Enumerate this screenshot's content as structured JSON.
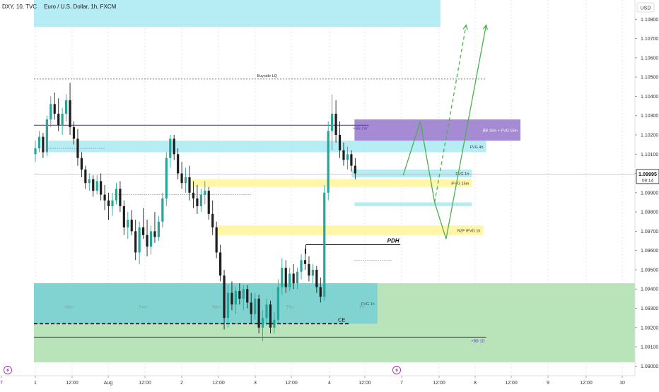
{
  "header": {
    "symbol": "DXY, 10, TVC",
    "instrument": "Euro / U.S. Dollar, 1h, FXCM",
    "currency": "USD"
  },
  "price_tag": {
    "price": "1.09995",
    "countdown": "08:14"
  },
  "colors": {
    "up": "#26a69a",
    "down": "#1e1e1e",
    "fvg": "#b2ebf2",
    "ifvg": "#fff59d",
    "bb": "#9575cd",
    "zone": "#b5e3b5",
    "purple_line": "#673ab7",
    "green_arrow": "#4caf50"
  },
  "chart_data": {
    "type": "candlestick",
    "title": "Euro / U.S. Dollar, 1h, FXCM",
    "ylim": [
      1.0895,
      1.109
    ],
    "y_ticks": [
      "1.10800",
      "1.10700",
      "1.10600",
      "1.10500",
      "1.10400",
      "1.10300",
      "1.10200",
      "1.10100",
      "1.10000",
      "1.09900",
      "1.09800",
      "1.09700",
      "1.09600",
      "1.09500",
      "1.09400",
      "1.09300",
      "1.09200",
      "1.09100",
      "1.09000"
    ],
    "x_ticks": [
      "7",
      "1",
      "12:00",
      "Aug",
      "12:00",
      "2",
      "12:00",
      "3",
      "12:00",
      "4",
      "12:00",
      "7",
      "12:00",
      "8",
      "12:00",
      "9",
      "12:00",
      "10"
    ],
    "day_labels": [
      "Mon",
      "Tues",
      "Wed",
      "Thu",
      "Fri"
    ],
    "zones": [
      {
        "label": "",
        "kind": "fvg",
        "x": [
          0,
          142
        ],
        "y": [
          1.1076,
          1.109
        ]
      },
      {
        "label": "FVG 4h",
        "kind": "fvg",
        "x": [
          5,
          158
        ],
        "y": [
          1.1011,
          1.1017
        ]
      },
      {
        "label": "-BB 15m + FVG 15m",
        "kind": "bb",
        "x": [
          112,
          170
        ],
        "y": [
          1.1017,
          1.1028
        ]
      },
      {
        "label": "FVG 1h",
        "kind": "fvg",
        "x": [
          111,
          153
        ],
        "y": [
          1.0998,
          1.1002
        ]
      },
      {
        "label": "IFVG 15m",
        "kind": "ifvg",
        "x": [
          55,
          153
        ],
        "y": [
          1.0993,
          1.0997
        ]
      },
      {
        "label": "",
        "kind": "fvg",
        "x": [
          112,
          153
        ],
        "y": [
          1.0983,
          1.0985
        ]
      },
      {
        "label": "RZF IFVG 1h",
        "kind": "ifvg",
        "x": [
          64,
          157
        ],
        "y": [
          1.0968,
          1.0973
        ]
      },
      {
        "label": "",
        "kind": "zone",
        "x": [
          0,
          210
        ],
        "y": [
          1.0902,
          1.0943
        ]
      },
      {
        "label": "FVG 1h",
        "kind": "fvg",
        "x": [
          0,
          120
        ],
        "y": [
          1.0922,
          1.0943
        ]
      }
    ],
    "levels": [
      {
        "label": "Buyside LQ",
        "y": 1.1049,
        "x": [
          0,
          158
        ],
        "style": "dotted"
      },
      {
        "label": "+BB 1W",
        "y": 1.1025,
        "x": [
          0,
          117
        ],
        "style": "solid-purple"
      },
      {
        "label": "PDH",
        "y": 1.0963,
        "x": [
          95,
          128
        ],
        "style": "solid-black"
      },
      {
        "label": "CE",
        "y": 1.0922,
        "x": [
          0,
          110
        ],
        "style": "dashed-black"
      },
      {
        "label": "+BB 1D",
        "y": 1.0915,
        "x": [
          0,
          158
        ],
        "style": "solid-purple"
      }
    ],
    "projections": [
      {
        "style": "solid",
        "points": [
          [
            129,
            1.0999
          ],
          [
            135,
            1.1027
          ],
          [
            140,
            1.0985
          ],
          [
            144,
            1.0966
          ],
          [
            158,
            1.1077
          ]
        ]
      },
      {
        "style": "dashed",
        "points": [
          [
            140,
            1.0985
          ],
          [
            151,
            1.1077
          ]
        ]
      }
    ],
    "candles": [
      [
        1.101,
        1.1017,
        1.1006,
        1.1013
      ],
      [
        1.1013,
        1.1022,
        1.1011,
        1.1019
      ],
      [
        1.1019,
        1.1021,
        1.1008,
        1.1011
      ],
      [
        1.1011,
        1.103,
        1.1009,
        1.1028
      ],
      [
        1.1028,
        1.104,
        1.1024,
        1.1036
      ],
      [
        1.1036,
        1.1042,
        1.1028,
        1.1031
      ],
      [
        1.1031,
        1.1039,
        1.1022,
        1.1025
      ],
      [
        1.1025,
        1.1034,
        1.102,
        1.1031
      ],
      [
        1.1031,
        1.1041,
        1.1027,
        1.1038
      ],
      [
        1.1038,
        1.1047,
        1.102,
        1.1024
      ],
      [
        1.1024,
        1.1027,
        1.1015,
        1.1018
      ],
      [
        1.1018,
        1.1023,
        1.1004,
        1.1008
      ],
      [
        1.1008,
        1.1011,
        1.0998,
        1.1002
      ],
      [
        1.1002,
        1.1004,
        1.0992,
        1.0995
      ],
      [
        1.0995,
        1.1,
        1.0991,
        1.0997
      ],
      [
        1.0997,
        1.0999,
        1.0988,
        1.0991
      ],
      [
        1.0991,
        1.0999,
        1.0989,
        1.0996
      ],
      [
        1.0996,
        1.1,
        1.0986,
        1.0989
      ],
      [
        1.0989,
        1.0994,
        1.0981,
        1.0986
      ],
      [
        1.0986,
        1.099,
        1.0976,
        1.0983
      ],
      [
        1.0983,
        1.099,
        1.0978,
        1.0986
      ],
      [
        1.0986,
        1.0995,
        1.0984,
        1.0992
      ],
      [
        1.0992,
        1.0996,
        1.098,
        1.0983
      ],
      [
        1.0983,
        1.0986,
        1.0968,
        1.0972
      ],
      [
        1.0972,
        1.098,
        1.0966,
        1.0976
      ],
      [
        1.0976,
        1.0981,
        1.0968,
        1.097
      ],
      [
        1.097,
        1.0976,
        1.0955,
        1.0959
      ],
      [
        1.0959,
        1.0975,
        1.0953,
        1.0972
      ],
      [
        1.0972,
        1.0982,
        1.0966,
        1.0968
      ],
      [
        1.0968,
        1.0976,
        1.0957,
        1.0962
      ],
      [
        1.0962,
        1.0973,
        1.0958,
        1.097
      ],
      [
        1.097,
        1.098,
        1.0964,
        1.0967
      ],
      [
        1.0967,
        1.0978,
        1.0965,
        1.0975
      ],
      [
        1.0975,
        1.099,
        1.0972,
        1.0987
      ],
      [
        1.0987,
        1.1011,
        1.0983,
        1.1008
      ],
      [
        1.1008,
        1.102,
        1.1003,
        1.1018
      ],
      [
        1.1018,
        1.102,
        1.1007,
        1.101
      ],
      [
        1.101,
        1.1013,
        1.0997,
        1.1
      ],
      [
        1.1,
        1.1006,
        1.0992,
        1.0995
      ],
      [
        1.0995,
        1.1003,
        1.099,
        1.0998
      ],
      [
        1.0998,
        1.1004,
        1.0986,
        1.099
      ],
      [
        1.099,
        1.0996,
        1.0982,
        1.0987
      ],
      [
        1.0987,
        1.0994,
        1.0979,
        1.0983
      ],
      [
        1.0983,
        1.0992,
        1.098,
        1.0989
      ],
      [
        1.0989,
        1.0996,
        1.0984,
        1.0991
      ],
      [
        1.0991,
        1.0993,
        1.0976,
        1.0979
      ],
      [
        1.0979,
        1.0986,
        1.0968,
        1.0972
      ],
      [
        1.0972,
        1.0975,
        1.0956,
        1.0959
      ],
      [
        1.0959,
        1.0963,
        1.0944,
        1.0947
      ],
      [
        1.0947,
        1.095,
        1.0919,
        1.0925
      ],
      [
        1.0925,
        1.0942,
        1.092,
        1.0938
      ],
      [
        1.0938,
        1.0944,
        1.0929,
        1.0932
      ],
      [
        1.0932,
        1.0941,
        1.0927,
        1.0939
      ],
      [
        1.0939,
        1.0943,
        1.0932,
        1.0935
      ],
      [
        1.0935,
        1.0942,
        1.0929,
        1.094
      ],
      [
        1.094,
        1.0942,
        1.093,
        1.0933
      ],
      [
        1.0933,
        1.0938,
        1.0922,
        1.0927
      ],
      [
        1.0927,
        1.0938,
        1.0924,
        1.0935
      ],
      [
        1.0935,
        1.0937,
        1.0917,
        1.092
      ],
      [
        1.092,
        1.0929,
        1.0913,
        1.0925
      ],
      [
        1.0925,
        1.0935,
        1.0921,
        1.0932
      ],
      [
        1.0932,
        1.0934,
        1.0917,
        1.092
      ],
      [
        1.092,
        1.0928,
        1.0917,
        1.0924
      ],
      [
        1.0924,
        1.0945,
        1.0922,
        1.0941
      ],
      [
        1.0941,
        1.0956,
        1.0937,
        1.0951
      ],
      [
        1.0951,
        1.0955,
        1.0938,
        1.0941
      ],
      [
        1.0941,
        1.0951,
        1.0939,
        1.0948
      ],
      [
        1.0948,
        1.0953,
        1.094,
        1.0943
      ],
      [
        1.0943,
        1.0951,
        1.094,
        1.0949
      ],
      [
        1.0949,
        1.0958,
        1.0945,
        1.0955
      ],
      [
        1.0955,
        1.0961,
        1.095,
        1.0953
      ],
      [
        1.0953,
        1.0957,
        1.0944,
        1.0947
      ],
      [
        1.0947,
        1.0953,
        1.0943,
        1.095
      ],
      [
        1.095,
        1.0952,
        1.0938,
        1.0941
      ],
      [
        1.0941,
        1.0946,
        1.0933,
        1.0936
      ],
      [
        1.0936,
        1.0994,
        1.0934,
        1.099
      ],
      [
        1.099,
        1.1027,
        1.0986,
        1.1022
      ],
      [
        1.1022,
        1.1041,
        1.1012,
        1.1031
      ],
      [
        1.1031,
        1.1038,
        1.1016,
        1.102
      ],
      [
        1.102,
        1.1027,
        1.1008,
        1.1012
      ],
      [
        1.1012,
        1.1016,
        1.1004,
        1.1007
      ],
      [
        1.1007,
        1.1014,
        1.1002,
        1.101
      ],
      [
        1.101,
        1.1012,
        1.1001,
        1.1004
      ],
      [
        1.1004,
        1.1008,
        1.0997,
        1.1
      ]
    ]
  }
}
